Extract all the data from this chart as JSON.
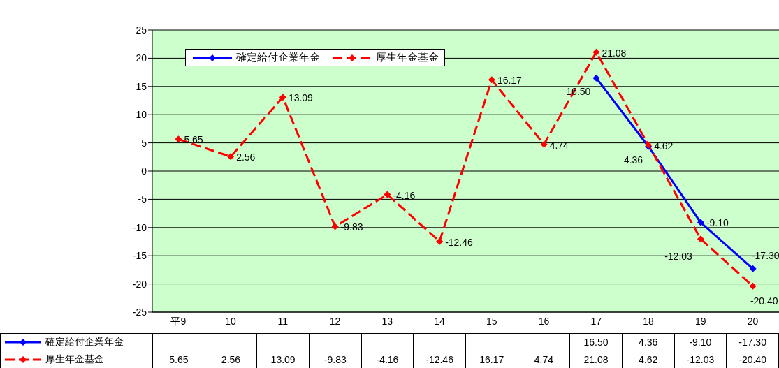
{
  "chart_data": {
    "type": "line",
    "categories": [
      "平9",
      "10",
      "11",
      "12",
      "13",
      "14",
      "15",
      "16",
      "17",
      "18",
      "19",
      "20"
    ],
    "series": [
      {
        "name": "確定給付企業年金",
        "color": "#0000ff",
        "line_style": "solid",
        "values": [
          null,
          null,
          null,
          null,
          null,
          null,
          null,
          null,
          16.5,
          4.36,
          -9.1,
          -17.3
        ],
        "value_labels": [
          null,
          null,
          null,
          null,
          null,
          null,
          null,
          null,
          "16.50",
          "4.36",
          "-9.10",
          "-17.30"
        ]
      },
      {
        "name": "厚生年金基金",
        "color": "#ff0000",
        "line_style": "dashed",
        "values": [
          5.65,
          2.56,
          13.09,
          -9.83,
          -4.16,
          -12.46,
          16.17,
          4.74,
          21.08,
          4.62,
          -12.03,
          -20.4
        ],
        "value_labels": [
          "5.65",
          "2.56",
          "13.09",
          "-9.83",
          "-4.16",
          "-12.46",
          "16.17",
          "4.74",
          "21.08",
          "4.62",
          "-12.03",
          "-20.40"
        ]
      }
    ],
    "ylim": [
      -25,
      25
    ],
    "yticks": [
      -25,
      -20,
      -15,
      -10,
      -5,
      0,
      5,
      10,
      15,
      20,
      25
    ],
    "grid": "y",
    "legend": "top left",
    "marker": "diamond"
  }
}
